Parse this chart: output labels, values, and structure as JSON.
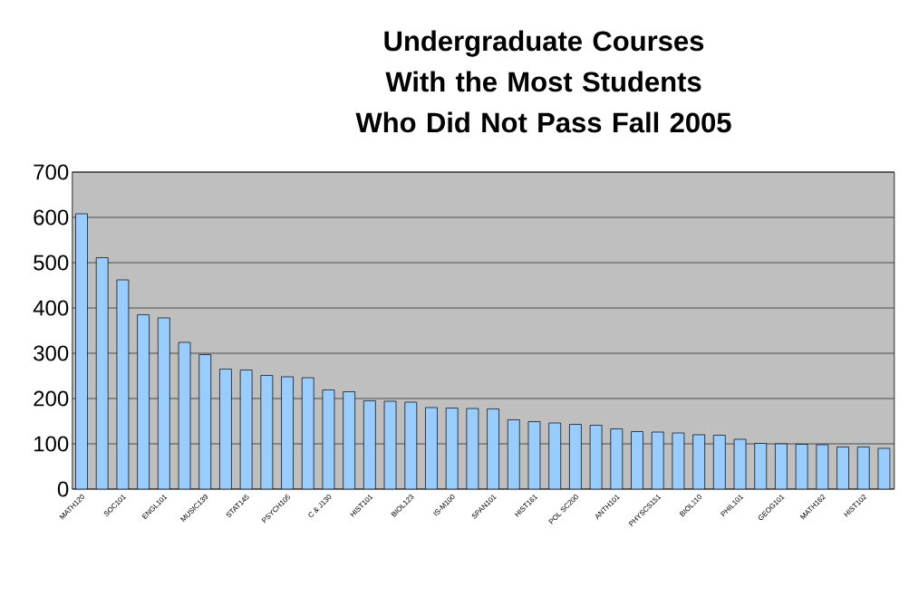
{
  "chart_data": {
    "type": "bar",
    "title": "Undergraduate Courses",
    "subtitle": "With the Most Students Who Did Not Pass Fall 2005",
    "categories": [
      "MATH120",
      null,
      "SOC101",
      null,
      "ENGL101",
      null,
      "MUSIC139",
      null,
      "STAT145",
      null,
      "PSYCH105",
      null,
      "C & J130",
      null,
      "HIST101",
      null,
      "BIOL123",
      null,
      "IS-M100",
      null,
      "SPAN101",
      null,
      "HIST161",
      null,
      "POL SC200",
      null,
      "ANTH101",
      null,
      "PHYSCS151",
      null,
      "BIOL110",
      null,
      "PHIL101",
      null,
      "GEOG101",
      null,
      "MATH162",
      null,
      "HIST102",
      null
    ],
    "values": [
      608,
      511,
      462,
      385,
      378,
      324,
      297,
      265,
      263,
      251,
      248,
      246,
      219,
      215,
      195,
      194,
      192,
      180,
      179,
      178,
      177,
      153,
      149,
      146,
      143,
      141,
      133,
      127,
      126,
      124,
      120,
      119,
      110,
      101,
      100,
      99,
      98,
      93,
      93,
      90
    ],
    "color": "#99ccff",
    "ylim": [
      0,
      700
    ],
    "yticks": [
      0,
      100,
      200,
      300,
      400,
      500,
      600,
      700
    ],
    "grid": "y"
  }
}
